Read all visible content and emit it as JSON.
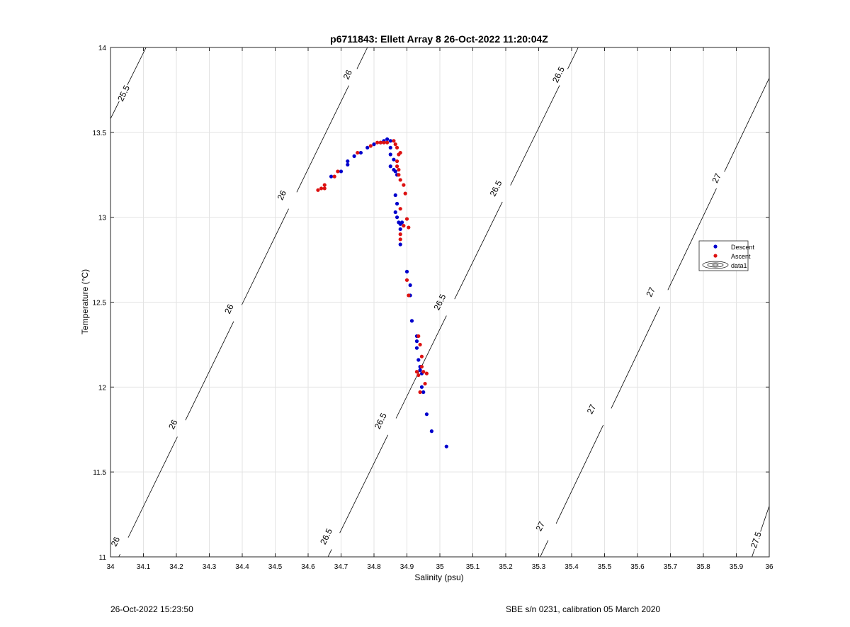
{
  "chart_data": {
    "type": "scatter",
    "title": "p6711843: Ellett Array 8 26-Oct-2022 11:20:04Z",
    "xlabel": "Salinity (psu)",
    "ylabel": "Temperature (°C)",
    "xlim": [
      34,
      36
    ],
    "ylim": [
      11,
      14
    ],
    "xticks": [
      "34",
      "34.1",
      "34.2",
      "34.3",
      "34.4",
      "34.5",
      "34.6",
      "34.7",
      "34.8",
      "34.9",
      "35",
      "35.1",
      "35.2",
      "35.3",
      "35.4",
      "35.5",
      "35.6",
      "35.7",
      "35.8",
      "35.9",
      "36"
    ],
    "yticks": [
      "11",
      "11.5",
      "12",
      "12.5",
      "13",
      "13.5",
      "14"
    ],
    "grid": true,
    "legend_position": "right",
    "series": [
      {
        "name": "Descent",
        "color": "#0000cc",
        "points": [
          [
            34.67,
            13.24
          ],
          [
            34.7,
            13.27
          ],
          [
            34.72,
            13.31
          ],
          [
            34.72,
            13.33
          ],
          [
            34.74,
            13.36
          ],
          [
            34.76,
            13.38
          ],
          [
            34.78,
            13.41
          ],
          [
            34.8,
            13.43
          ],
          [
            34.82,
            13.44
          ],
          [
            34.83,
            13.45
          ],
          [
            34.84,
            13.46
          ],
          [
            34.85,
            13.45
          ],
          [
            34.85,
            13.41
          ],
          [
            34.85,
            13.37
          ],
          [
            34.86,
            13.34
          ],
          [
            34.85,
            13.3
          ],
          [
            34.86,
            13.28
          ],
          [
            34.865,
            13.27
          ],
          [
            34.87,
            13.25
          ],
          [
            34.865,
            13.13
          ],
          [
            34.87,
            13.08
          ],
          [
            34.865,
            13.03
          ],
          [
            34.87,
            13.0
          ],
          [
            34.875,
            12.97
          ],
          [
            34.88,
            12.96
          ],
          [
            34.88,
            12.93
          ],
          [
            34.885,
            12.97
          ],
          [
            34.88,
            12.84
          ],
          [
            34.9,
            12.68
          ],
          [
            34.91,
            12.6
          ],
          [
            34.91,
            12.54
          ],
          [
            34.915,
            12.39
          ],
          [
            34.93,
            12.3
          ],
          [
            34.93,
            12.27
          ],
          [
            34.93,
            12.23
          ],
          [
            34.935,
            12.16
          ],
          [
            34.94,
            12.12
          ],
          [
            34.94,
            12.1
          ],
          [
            34.945,
            12.08
          ],
          [
            34.945,
            12.0
          ],
          [
            34.95,
            11.97
          ],
          [
            34.96,
            11.84
          ],
          [
            34.975,
            11.74
          ],
          [
            35.02,
            11.65
          ]
        ]
      },
      {
        "name": "Ascent",
        "color": "#dd1111",
        "points": [
          [
            34.63,
            13.16
          ],
          [
            34.64,
            13.17
          ],
          [
            34.65,
            13.17
          ],
          [
            34.65,
            13.19
          ],
          [
            34.68,
            13.24
          ],
          [
            34.69,
            13.27
          ],
          [
            34.75,
            13.38
          ],
          [
            34.79,
            13.42
          ],
          [
            34.81,
            13.44
          ],
          [
            34.82,
            13.44
          ],
          [
            34.83,
            13.44
          ],
          [
            34.84,
            13.44
          ],
          [
            34.86,
            13.45
          ],
          [
            34.865,
            13.43
          ],
          [
            34.87,
            13.41
          ],
          [
            34.875,
            13.37
          ],
          [
            34.88,
            13.38
          ],
          [
            34.87,
            13.33
          ],
          [
            34.87,
            13.3
          ],
          [
            34.875,
            13.28
          ],
          [
            34.875,
            13.25
          ],
          [
            34.88,
            13.22
          ],
          [
            34.89,
            13.19
          ],
          [
            34.895,
            13.14
          ],
          [
            34.88,
            13.05
          ],
          [
            34.9,
            12.99
          ],
          [
            34.89,
            12.95
          ],
          [
            34.905,
            12.94
          ],
          [
            34.88,
            12.9
          ],
          [
            34.88,
            12.87
          ],
          [
            34.9,
            12.63
          ],
          [
            34.905,
            12.54
          ],
          [
            34.935,
            12.3
          ],
          [
            34.94,
            12.25
          ],
          [
            34.945,
            12.18
          ],
          [
            34.945,
            12.12
          ],
          [
            34.95,
            12.09
          ],
          [
            34.935,
            12.07
          ],
          [
            34.96,
            12.08
          ],
          [
            34.955,
            12.02
          ],
          [
            34.94,
            11.97
          ],
          [
            34.93,
            12.09
          ]
        ]
      }
    ],
    "extra_legend_entry": "data1",
    "contours": [
      {
        "level": "25.5",
        "points": [
          [
            34.0,
            13.58
          ],
          [
            34.108,
            14.0
          ]
        ],
        "labels": [
          [
            34.04,
            13.73
          ]
        ]
      },
      {
        "level": "26",
        "points": [
          [
            34.0,
            10.9
          ],
          [
            34.78,
            14.0
          ]
        ],
        "labels": [
          [
            34.015,
            11.09
          ],
          [
            34.19,
            11.78
          ],
          [
            34.36,
            12.46
          ],
          [
            34.52,
            13.13
          ],
          [
            34.72,
            13.84
          ]
        ]
      },
      {
        "level": "26.5",
        "points": [
          [
            34.635,
            10.9
          ],
          [
            35.42,
            14.0
          ]
        ],
        "labels": [
          [
            34.655,
            11.12
          ],
          [
            34.82,
            11.8
          ],
          [
            35.0,
            12.5
          ],
          [
            35.17,
            13.17
          ],
          [
            35.36,
            13.84
          ]
        ]
      },
      {
        "level": "27",
        "points": [
          [
            35.28,
            10.9
          ],
          [
            36.0,
            13.82
          ]
        ],
        "labels": [
          [
            35.305,
            11.18
          ],
          [
            35.46,
            11.87
          ],
          [
            35.64,
            12.56
          ],
          [
            35.84,
            13.23
          ]
        ]
      },
      {
        "level": "27.5",
        "points": [
          [
            35.93,
            10.9
          ],
          [
            36.0,
            11.3
          ]
        ],
        "labels": [
          [
            35.96,
            11.1
          ]
        ]
      }
    ]
  },
  "footer": {
    "timestamp": "26-Oct-2022 15:23:50",
    "instrument": "SBE s/n 0231, calibration 05 March 2020"
  }
}
